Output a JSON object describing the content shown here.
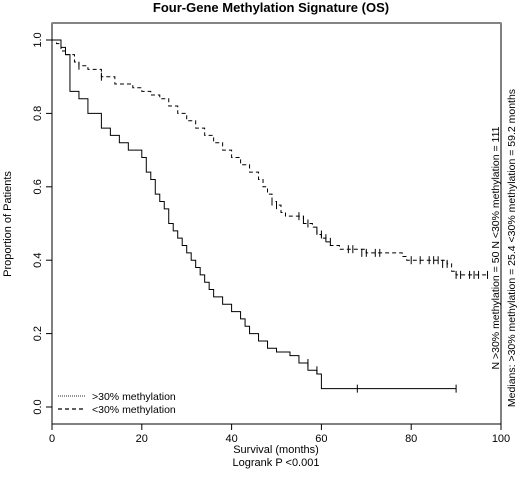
{
  "chart_data": {
    "type": "line",
    "title": "Four-Gene Methylation Signature (OS)",
    "xlabel": "Survival (months)",
    "xlabel2": "Logrank P <0.001",
    "ylabel": "Proportion of Patients",
    "xlim": [
      0,
      100
    ],
    "ylim": [
      0,
      1.0
    ],
    "x_ticks": [
      "0",
      "20",
      "40",
      "60",
      "80",
      "100"
    ],
    "y_ticks": [
      "0.0",
      "0.2",
      "0.4",
      "0.6",
      "0.8",
      "1.0"
    ],
    "grid": false,
    "legend_position": "bottom-left",
    "side_notes": [
      "N >30% methylation = 50 N <30% methylation = 111",
      "Medians: >30% methylation = 25.4 <30% methylation = 59.2  months"
    ],
    "series": [
      {
        "name": ">30% methylation",
        "line_style": "solid",
        "points": [
          [
            0,
            1.0
          ],
          [
            2,
            0.98
          ],
          [
            3,
            0.96
          ],
          [
            4,
            0.86
          ],
          [
            6,
            0.84
          ],
          [
            8,
            0.8
          ],
          [
            10,
            0.8
          ],
          [
            11,
            0.76
          ],
          [
            13,
            0.74
          ],
          [
            15,
            0.72
          ],
          [
            17,
            0.7
          ],
          [
            19,
            0.7
          ],
          [
            20,
            0.68
          ],
          [
            21,
            0.64
          ],
          [
            22,
            0.62
          ],
          [
            23,
            0.58
          ],
          [
            24,
            0.56
          ],
          [
            25,
            0.54
          ],
          [
            26,
            0.5
          ],
          [
            27,
            0.48
          ],
          [
            28,
            0.46
          ],
          [
            29,
            0.44
          ],
          [
            30,
            0.42
          ],
          [
            31,
            0.4
          ],
          [
            32,
            0.38
          ],
          [
            33,
            0.36
          ],
          [
            34,
            0.34
          ],
          [
            35,
            0.32
          ],
          [
            36,
            0.3
          ],
          [
            38,
            0.28
          ],
          [
            40,
            0.26
          ],
          [
            42,
            0.24
          ],
          [
            43,
            0.22
          ],
          [
            44,
            0.2
          ],
          [
            46,
            0.18
          ],
          [
            48,
            0.16
          ],
          [
            50,
            0.15
          ],
          [
            53,
            0.14
          ],
          [
            55,
            0.12
          ],
          [
            57,
            0.1
          ],
          [
            59,
            0.09
          ],
          [
            60,
            0.05
          ],
          [
            90,
            0.05
          ]
        ],
        "censored": [
          [
            57,
            0.12
          ],
          [
            59,
            0.1
          ],
          [
            68,
            0.05
          ],
          [
            90,
            0.05
          ]
        ]
      },
      {
        "name": "<30% methylation",
        "line_style": "dashed",
        "points": [
          [
            0,
            1.0
          ],
          [
            1,
            0.99
          ],
          [
            2,
            0.97
          ],
          [
            3,
            0.96
          ],
          [
            5,
            0.94
          ],
          [
            6,
            0.93
          ],
          [
            8,
            0.92
          ],
          [
            11,
            0.9
          ],
          [
            14,
            0.88
          ],
          [
            18,
            0.87
          ],
          [
            20,
            0.86
          ],
          [
            22,
            0.85
          ],
          [
            24,
            0.84
          ],
          [
            26,
            0.82
          ],
          [
            28,
            0.8
          ],
          [
            30,
            0.78
          ],
          [
            32,
            0.76
          ],
          [
            34,
            0.74
          ],
          [
            36,
            0.72
          ],
          [
            38,
            0.7
          ],
          [
            40,
            0.68
          ],
          [
            42,
            0.66
          ],
          [
            44,
            0.64
          ],
          [
            46,
            0.62
          ],
          [
            47,
            0.6
          ],
          [
            48,
            0.58
          ],
          [
            49,
            0.56
          ],
          [
            50,
            0.55
          ],
          [
            51,
            0.53
          ],
          [
            52,
            0.52
          ],
          [
            55,
            0.52
          ],
          [
            56,
            0.5
          ],
          [
            58,
            0.49
          ],
          [
            59,
            0.47
          ],
          [
            60,
            0.46
          ],
          [
            61,
            0.45
          ],
          [
            62,
            0.44
          ],
          [
            64,
            0.43
          ],
          [
            70,
            0.42
          ],
          [
            78,
            0.41
          ],
          [
            79,
            0.4
          ],
          [
            88,
            0.39
          ],
          [
            89,
            0.37
          ],
          [
            90,
            0.36
          ],
          [
            97,
            0.36
          ]
        ],
        "censored": [
          [
            6,
            0.93
          ],
          [
            11,
            0.9
          ],
          [
            49,
            0.56
          ],
          [
            50,
            0.55
          ],
          [
            55,
            0.52
          ],
          [
            56,
            0.51
          ],
          [
            57,
            0.5
          ],
          [
            59,
            0.48
          ],
          [
            60,
            0.47
          ],
          [
            61,
            0.46
          ],
          [
            62,
            0.45
          ],
          [
            66,
            0.43
          ],
          [
            67,
            0.43
          ],
          [
            69,
            0.42
          ],
          [
            70,
            0.42
          ],
          [
            72,
            0.42
          ],
          [
            73,
            0.42
          ],
          [
            80,
            0.4
          ],
          [
            82,
            0.4
          ],
          [
            84,
            0.4
          ],
          [
            85,
            0.4
          ],
          [
            86,
            0.4
          ],
          [
            87,
            0.39
          ],
          [
            88,
            0.39
          ],
          [
            90,
            0.36
          ],
          [
            91,
            0.36
          ],
          [
            93,
            0.36
          ],
          [
            94,
            0.36
          ],
          [
            95,
            0.36
          ],
          [
            97,
            0.36
          ]
        ]
      }
    ]
  }
}
